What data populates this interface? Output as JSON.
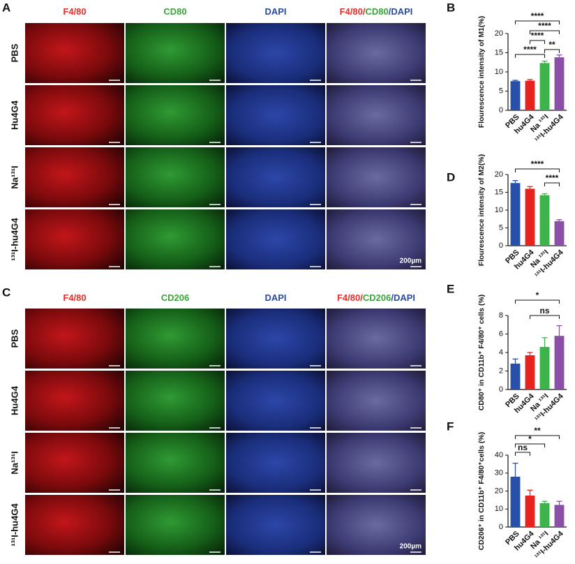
{
  "image_panels": [
    {
      "letter": "A",
      "columns": [
        [
          {
            "text": "F4/80",
            "color": "#e2302a"
          }
        ],
        [
          {
            "text": "CD80",
            "color": "#3aa53a"
          }
        ],
        [
          {
            "text": "DAPI",
            "color": "#2a4a9e"
          }
        ],
        [
          {
            "text": "F4/80",
            "color": "#e2302a"
          },
          {
            "text": "/",
            "color": "#e2302a"
          },
          {
            "text": "CD80",
            "color": "#3aa53a"
          },
          {
            "text": "/DAPI",
            "color": "#2a4a9e"
          }
        ]
      ],
      "rows": [
        "PBS",
        "Hu4G4",
        "Na¹³¹I",
        "¹³¹I-hu4G4"
      ],
      "scale_bar": "200µm"
    },
    {
      "letter": "C",
      "columns": [
        [
          {
            "text": "F4/80",
            "color": "#e2302a"
          }
        ],
        [
          {
            "text": "CD206",
            "color": "#3aa53a"
          }
        ],
        [
          {
            "text": "DAPI",
            "color": "#2a4a9e"
          }
        ],
        [
          {
            "text": "F4/80",
            "color": "#e2302a"
          },
          {
            "text": "/",
            "color": "#e2302a"
          },
          {
            "text": "CD206",
            "color": "#3aa53a"
          },
          {
            "text": "/DAPI",
            "color": "#2a4a9e"
          }
        ]
      ],
      "rows": [
        "PBS",
        "Hu4G4",
        "Na¹³¹I",
        "¹³¹I-hu4G4"
      ],
      "scale_bar": "200µm"
    }
  ],
  "chart_data": [
    {
      "type": "bar",
      "label": "B",
      "y_label": "Flourescence intensity of M1(%)",
      "categories": [
        "PBS",
        "hu4G4",
        "Na ¹³¹I",
        "¹³¹I-hu4G4"
      ],
      "values": [
        7.6,
        7.7,
        12.3,
        13.8
      ],
      "errors": [
        0.2,
        0.3,
        0.5,
        0.6
      ],
      "colors": [
        "#2850a8",
        "#e8231f",
        "#3cb44a",
        "#8b4fa8"
      ],
      "ylim": [
        0,
        20
      ],
      "yticks": [
        0,
        5,
        10,
        15,
        20
      ],
      "annotations": [
        "****",
        "****",
        "****",
        "****",
        "**"
      ]
    },
    {
      "type": "bar",
      "label": "D",
      "y_label": "Flourescence intensity of M2(%)",
      "categories": [
        "PBS",
        "hu4G4",
        "Na ¹³¹I",
        "¹³¹I-hu4G4"
      ],
      "values": [
        17.6,
        16.0,
        14.2,
        6.9
      ],
      "errors": [
        0.7,
        0.6,
        0.4,
        0.4
      ],
      "colors": [
        "#2850a8",
        "#e8231f",
        "#3cb44a",
        "#8b4fa8"
      ],
      "ylim": [
        0,
        20
      ],
      "yticks": [
        0,
        5,
        10,
        15,
        20
      ],
      "annotations": [
        "****",
        "****"
      ]
    },
    {
      "type": "bar",
      "label": "E",
      "y_label": "CD80⁺ in CD11b⁺ F4/80⁺ cells (%)",
      "categories": [
        "PBS",
        "hu4G4",
        "Na ¹³¹I",
        "¹³¹I-hu4G4"
      ],
      "values": [
        2.8,
        3.7,
        4.6,
        5.8
      ],
      "errors": [
        0.5,
        0.3,
        1.0,
        1.1
      ],
      "colors": [
        "#2850a8",
        "#e8231f",
        "#3cb44a",
        "#8b4fa8"
      ],
      "ylim": [
        0,
        8
      ],
      "yticks": [
        0,
        2,
        4,
        6,
        8
      ],
      "annotations": [
        "*",
        "ns"
      ]
    },
    {
      "type": "bar",
      "label": "F",
      "y_label": "CD206⁺ in CD11b⁺ F4/80⁺cells (%)",
      "categories": [
        "PBS",
        "hu4G4",
        "Na ¹³¹I",
        "¹³¹I-hu4G4"
      ],
      "values": [
        28,
        17.5,
        13.3,
        12.3
      ],
      "errors": [
        7.5,
        3,
        1,
        2
      ],
      "colors": [
        "#2850a8",
        "#e8231f",
        "#3cb44a",
        "#8b4fa8"
      ],
      "ylim": [
        0,
        40
      ],
      "yticks": [
        0,
        10,
        20,
        30,
        40
      ],
      "annotations": [
        "ns",
        "*",
        "**"
      ]
    }
  ]
}
